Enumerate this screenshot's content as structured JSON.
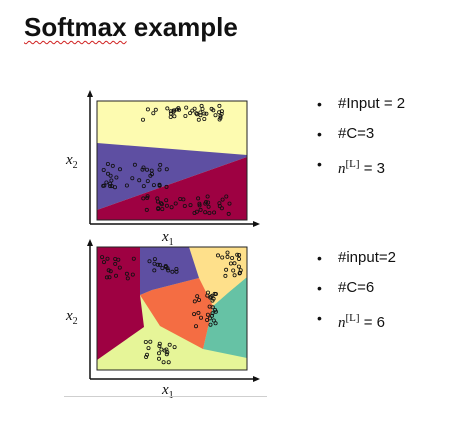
{
  "slide": {
    "title_part1": "Softmax",
    "title_part2": " example"
  },
  "top_plot": {
    "xlabel": "x",
    "xlabel_sub": "1",
    "ylabel": "x",
    "ylabel_sub": "2",
    "bullets": [
      {
        "text": "#Input = 2"
      },
      {
        "text": "#C=3"
      },
      {
        "prefix": "n",
        "sup": "[L]",
        "suffix": " = 3"
      }
    ],
    "region_colors": [
      "#fdfbb0",
      "#5e4fa2",
      "#9e0142"
    ]
  },
  "bottom_plot": {
    "xlabel": "x",
    "xlabel_sub": "1",
    "ylabel": "x",
    "ylabel_sub": "2",
    "bullets": [
      {
        "text": "#input=2"
      },
      {
        "text": "#C=6"
      },
      {
        "prefix": "n",
        "sup": "[L]",
        "suffix": " = 6"
      }
    ],
    "region_colors": [
      "#9e0142",
      "#5e4fa2",
      "#fee08b",
      "#f46d43",
      "#66c2a5",
      "#e6f598"
    ]
  },
  "bullet_symbol": "•"
}
